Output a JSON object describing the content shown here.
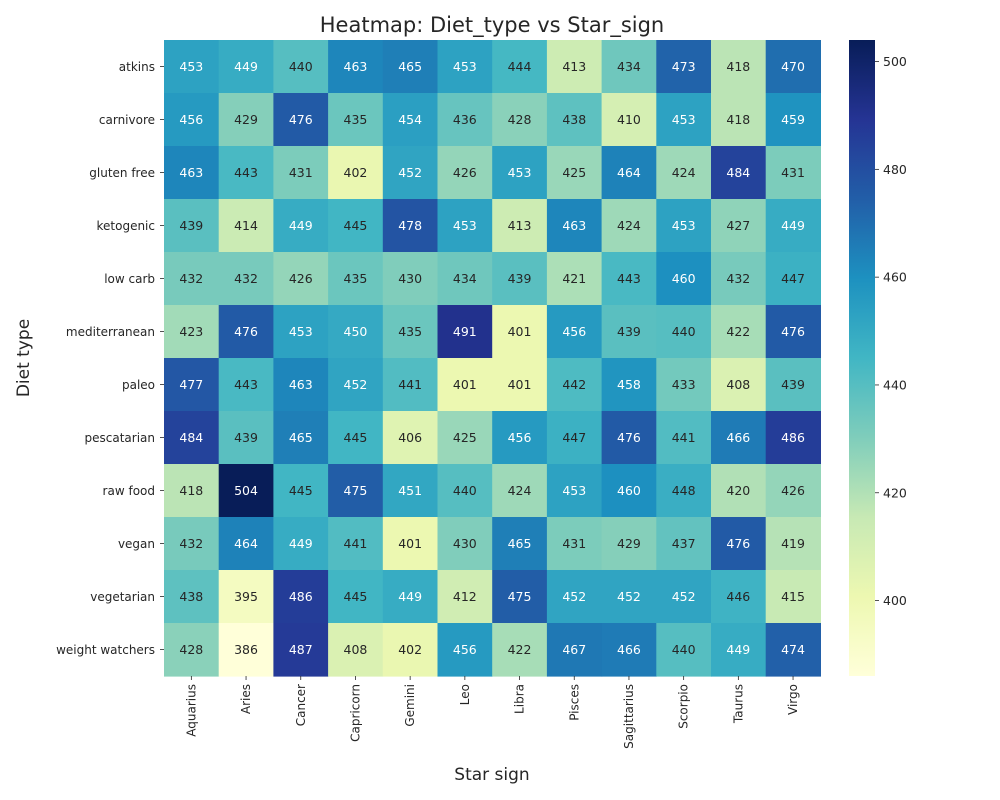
{
  "chart_data": {
    "type": "heatmap",
    "title": "Heatmap: Diet_type vs Star_sign",
    "xlabel": "Star sign",
    "ylabel": "Diet type",
    "x_categories": [
      "Aquarius",
      "Aries",
      "Cancer",
      "Capricorn",
      "Gemini",
      "Leo",
      "Libra",
      "Pisces",
      "Sagittarius",
      "Scorpio",
      "Taurus",
      "Virgo"
    ],
    "y_categories": [
      "atkins",
      "carnivore",
      "gluten free",
      "ketogenic",
      "low carb",
      "mediterranean",
      "paleo",
      "pescatarian",
      "raw food",
      "vegan",
      "vegetarian",
      "weight watchers"
    ],
    "values": [
      [
        453,
        449,
        440,
        463,
        465,
        453,
        444,
        413,
        434,
        473,
        418,
        470
      ],
      [
        456,
        429,
        476,
        435,
        454,
        436,
        428,
        438,
        410,
        453,
        418,
        459
      ],
      [
        463,
        443,
        431,
        402,
        452,
        426,
        453,
        425,
        464,
        424,
        484,
        431
      ],
      [
        439,
        414,
        449,
        445,
        478,
        453,
        413,
        463,
        424,
        453,
        427,
        449
      ],
      [
        432,
        432,
        426,
        435,
        430,
        434,
        439,
        421,
        443,
        460,
        432,
        447
      ],
      [
        423,
        476,
        453,
        450,
        435,
        491,
        401,
        456,
        439,
        440,
        422,
        476
      ],
      [
        477,
        443,
        463,
        452,
        441,
        401,
        401,
        442,
        458,
        433,
        408,
        439
      ],
      [
        484,
        439,
        465,
        445,
        406,
        425,
        456,
        447,
        476,
        441,
        466,
        486
      ],
      [
        418,
        504,
        445,
        475,
        451,
        440,
        424,
        453,
        460,
        448,
        420,
        426
      ],
      [
        432,
        464,
        449,
        441,
        401,
        430,
        465,
        431,
        429,
        437,
        476,
        419
      ],
      [
        438,
        395,
        486,
        445,
        449,
        412,
        475,
        452,
        452,
        452,
        446,
        415
      ],
      [
        428,
        386,
        487,
        408,
        402,
        456,
        422,
        467,
        466,
        440,
        449,
        474
      ]
    ],
    "colormap": "YlGnBu",
    "vmin": 386,
    "vmax": 504,
    "annotated": true,
    "colorbar": true,
    "colorbar_ticks": [
      400,
      420,
      440,
      460,
      480,
      500
    ],
    "grid": false
  }
}
